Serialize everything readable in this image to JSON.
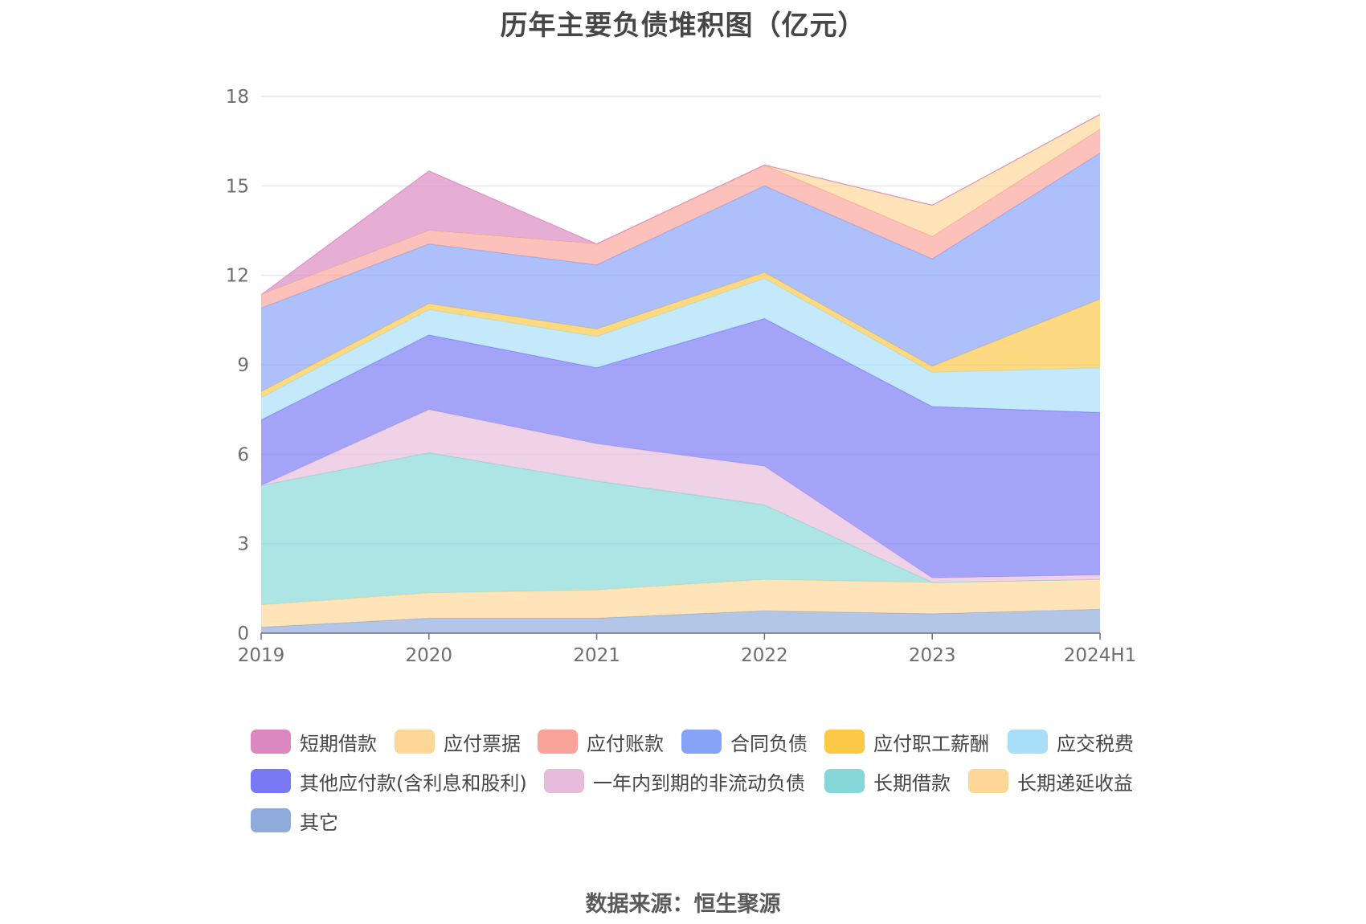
{
  "chart_data": {
    "type": "area",
    "stacked": true,
    "title": "历年主要负债堆积图（亿元）",
    "xlabel": "",
    "ylabel": "",
    "categories": [
      "2019",
      "2020",
      "2021",
      "2022",
      "2023",
      "2024H1"
    ],
    "ylim": [
      0,
      18
    ],
    "yticks": [
      "0",
      "3",
      "6",
      "9",
      "12",
      "15",
      "18"
    ],
    "grid": true,
    "legend_position": "bottom",
    "series": [
      {
        "name": "其它",
        "color": "#8fabdb",
        "values": [
          0.2,
          0.5,
          0.5,
          0.75,
          0.65,
          0.8
        ]
      },
      {
        "name": "长期递延收益",
        "color": "#fdd797",
        "values": [
          0.75,
          0.85,
          0.95,
          1.05,
          1.05,
          1.0
        ]
      },
      {
        "name": "长期借款",
        "color": "#86d8d8",
        "values": [
          4.0,
          4.7,
          3.65,
          2.5,
          0.0,
          0.0
        ]
      },
      {
        "name": "一年内到期的非流动负债",
        "color": "#e7bcda",
        "values": [
          0.0,
          1.45,
          1.25,
          1.3,
          0.15,
          0.15
        ]
      },
      {
        "name": "其他应付款(含利息和股利)",
        "color": "#7878f5",
        "values": [
          2.2,
          2.5,
          2.55,
          4.95,
          5.75,
          5.45
        ]
      },
      {
        "name": "应交税费",
        "color": "#a8def8",
        "values": [
          0.75,
          0.85,
          1.05,
          1.35,
          1.15,
          1.5
        ]
      },
      {
        "name": "应付职工薪酬",
        "color": "#fcc845",
        "values": [
          0.2,
          0.2,
          0.25,
          0.2,
          0.2,
          2.3
        ]
      },
      {
        "name": "合同负债",
        "color": "#87a2f9",
        "values": [
          2.8,
          2.0,
          2.15,
          2.9,
          3.6,
          4.9
        ]
      },
      {
        "name": "应付账款",
        "color": "#f9a39a",
        "values": [
          0.45,
          0.45,
          0.7,
          0.7,
          0.75,
          0.8
        ]
      },
      {
        "name": "应付票据",
        "color": "#fdd797",
        "values": [
          0.0,
          0.0,
          0.0,
          0.0,
          1.05,
          0.5
        ]
      },
      {
        "name": "短期借款",
        "color": "#db88c1",
        "values": [
          0.0,
          2.0,
          0.0,
          0.0,
          0.0,
          0.0
        ]
      }
    ]
  },
  "legend": [
    {
      "name": "短期借款",
      "color": "#db88c1"
    },
    {
      "name": "应付票据",
      "color": "#fdd797"
    },
    {
      "name": "应付账款",
      "color": "#f9a39a"
    },
    {
      "name": "合同负债",
      "color": "#87a2f9"
    },
    {
      "name": "应付职工薪酬",
      "color": "#fcc845"
    },
    {
      "name": "应交税费",
      "color": "#a8def8"
    },
    {
      "name": "其他应付款(含利息和股利)",
      "color": "#7878f5"
    },
    {
      "name": "一年内到期的非流动负债",
      "color": "#e7bcda"
    },
    {
      "name": "长期借款",
      "color": "#86d8d8"
    },
    {
      "name": "长期递延收益",
      "color": "#fdd797"
    },
    {
      "name": "其它",
      "color": "#8fabdb"
    }
  ],
  "source": "数据来源：恒生聚源"
}
